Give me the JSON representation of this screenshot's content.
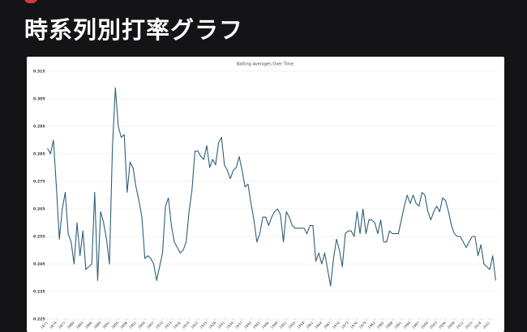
{
  "header": {
    "title": "時系列別打率グラフ"
  },
  "chart_data": {
    "type": "line",
    "title": "Batting Averages Over Time",
    "x": [
      1871,
      1872,
      1873,
      1874,
      1875,
      1876,
      1877,
      1878,
      1879,
      1880,
      1881,
      1882,
      1883,
      1884,
      1885,
      1886,
      1887,
      1888,
      1889,
      1890,
      1891,
      1892,
      1893,
      1894,
      1895,
      1896,
      1897,
      1898,
      1899,
      1900,
      1901,
      1902,
      1903,
      1904,
      1905,
      1906,
      1907,
      1908,
      1909,
      1910,
      1911,
      1912,
      1913,
      1914,
      1915,
      1916,
      1917,
      1918,
      1919,
      1920,
      1921,
      1922,
      1923,
      1924,
      1925,
      1926,
      1927,
      1928,
      1929,
      1930,
      1931,
      1932,
      1933,
      1934,
      1935,
      1936,
      1937,
      1938,
      1939,
      1940,
      1941,
      1942,
      1943,
      1944,
      1945,
      1946,
      1947,
      1948,
      1949,
      1950,
      1951,
      1952,
      1953,
      1954,
      1955,
      1956,
      1957,
      1958,
      1959,
      1960,
      1961,
      1962,
      1963,
      1964,
      1965,
      1966,
      1967,
      1968,
      1969,
      1970,
      1971,
      1972,
      1973,
      1974,
      1975,
      1976,
      1977,
      1978,
      1979,
      1980,
      1981,
      1982,
      1983,
      1984,
      1985,
      1986,
      1987,
      1988,
      1989,
      1990,
      1991,
      1992,
      1993,
      1994,
      1995,
      1996,
      1997,
      1998,
      1999,
      2000,
      2001,
      2002,
      2003,
      2004,
      2005,
      2006,
      2007,
      2008,
      2009,
      2010,
      2011,
      2012,
      2013,
      2014,
      2015,
      2016,
      2017,
      2018,
      2019,
      2020,
      2021,
      2022,
      2023
    ],
    "series": [
      {
        "color": "#2f5f78",
        "values": [
          0.287,
          0.285,
          0.29,
          0.273,
          0.254,
          0.265,
          0.271,
          0.256,
          0.253,
          0.245,
          0.26,
          0.248,
          0.257,
          0.243,
          0.244,
          0.245,
          0.271,
          0.239,
          0.264,
          0.26,
          0.254,
          0.245,
          0.287,
          0.309,
          0.295,
          0.291,
          0.292,
          0.271,
          0.282,
          0.28,
          0.273,
          0.268,
          0.262,
          0.247,
          0.248,
          0.247,
          0.245,
          0.239,
          0.244,
          0.249,
          0.266,
          0.269,
          0.259,
          0.253,
          0.251,
          0.249,
          0.25,
          0.253,
          0.264,
          0.272,
          0.286,
          0.286,
          0.284,
          0.283,
          0.288,
          0.28,
          0.283,
          0.281,
          0.289,
          0.291,
          0.281,
          0.279,
          0.276,
          0.279,
          0.28,
          0.284,
          0.279,
          0.273,
          0.274,
          0.267,
          0.261,
          0.253,
          0.256,
          0.262,
          0.262,
          0.259,
          0.262,
          0.264,
          0.265,
          0.263,
          0.253,
          0.264,
          0.262,
          0.259,
          0.258,
          0.258,
          0.258,
          0.258,
          0.256,
          0.259,
          0.259,
          0.246,
          0.249,
          0.245,
          0.249,
          0.243,
          0.237,
          0.247,
          0.254,
          0.25,
          0.244,
          0.256,
          0.257,
          0.257,
          0.255,
          0.264,
          0.256,
          0.265,
          0.256,
          0.261,
          0.261,
          0.26,
          0.256,
          0.261,
          0.253,
          0.253,
          0.257,
          0.256,
          0.256,
          0.256,
          0.261,
          0.266,
          0.27,
          0.267,
          0.27,
          0.267,
          0.266,
          0.271,
          0.27,
          0.264,
          0.261,
          0.264,
          0.266,
          0.264,
          0.269,
          0.268,
          0.264,
          0.259,
          0.256,
          0.255,
          0.255,
          0.253,
          0.251,
          0.253,
          0.255,
          0.255,
          0.248,
          0.252,
          0.245,
          0.244,
          0.243,
          0.248,
          0.239
        ]
      }
    ],
    "xlim": [
      1870,
      2024
    ],
    "xticks": [
      1871,
      1874,
      1877,
      1880,
      1883,
      1886,
      1889,
      1892,
      1895,
      1898,
      1901,
      1904,
      1907,
      1910,
      1913,
      1916,
      1919,
      1922,
      1925,
      1928,
      1931,
      1934,
      1937,
      1940,
      1943,
      1946,
      1949,
      1952,
      1955,
      1958,
      1961,
      1964,
      1967,
      1970,
      1973,
      1976,
      1979,
      1982,
      1985,
      1988,
      1991,
      1994,
      1997,
      2000,
      2003,
      2006,
      2009,
      2012,
      2015,
      2018,
      2021
    ],
    "ylim": [
      0.225,
      0.315
    ],
    "yticks": [
      0.225,
      0.235,
      0.245,
      0.255,
      0.265,
      0.275,
      0.285,
      0.295,
      0.305,
      0.315
    ],
    "grid": true
  }
}
